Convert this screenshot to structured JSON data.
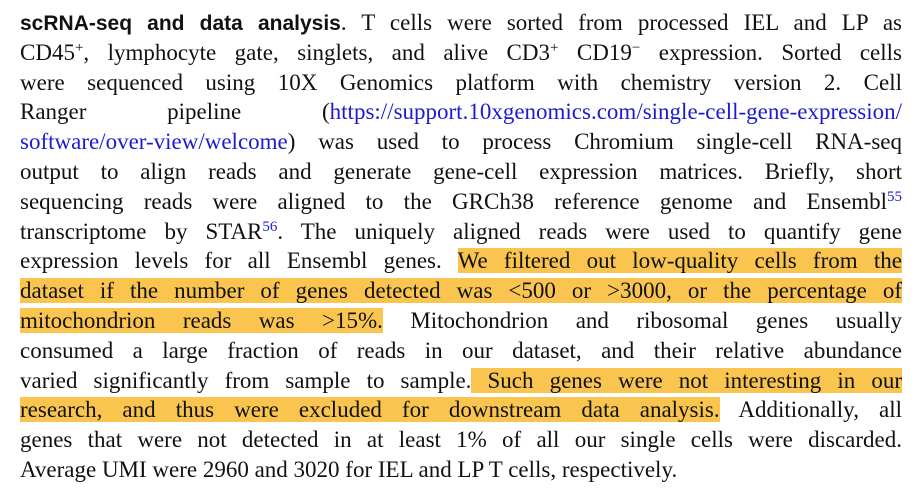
{
  "paragraph": {
    "heading": "scRNA-seq and data analysis",
    "lines": [
      [
        ". T cells were sorted from processed IEL and LP as"
      ],
      [
        "CD45",
        "+",
        ", lymphocyte gate, singlets, and alive CD3",
        "+",
        " CD19",
        "−",
        " expression. Sorted cells"
      ],
      [
        "were sequenced using 10X Genomics platform with chemistry version 2. Cell"
      ],
      [
        "Ranger pipeline (",
        "https://support.10xgenomics.com/single-cell-gene-expression/"
      ],
      [
        "software/over-view/welcome",
        ") was used to process Chromium single-cell RNA-seq"
      ],
      [
        "output to align reads and generate gene-cell expression matrices. Briefly, short"
      ],
      [
        "sequencing reads were aligned to the GRCh38 reference genome and Ensembl",
        "55"
      ],
      [
        "transcriptome by STAR",
        "56",
        ". The uniquely aligned reads were used to quantify gene"
      ],
      [
        "expression levels for all Ensembl genes. ",
        "We filtered out low-quality cells from the"
      ],
      [
        "dataset if the number of genes detected was <500 or >3000, or the percentage of"
      ],
      [
        "mitochondrion reads was >15%.",
        " Mitochondrion and ribosomal genes usually"
      ],
      [
        "consumed a large fraction of reads in our dataset, and their relative abundance"
      ],
      [
        "varied significantly from sample to sample.",
        " Such genes were not interesting in our"
      ],
      [
        "research, and thus were excluded for downstream data analysis.",
        " Additionally, all"
      ],
      [
        "genes that were not detected in at least 1% of all our single cells were discarded."
      ],
      [
        "Average UMI were 2960 and 3020 for IEL and LP T cells, respectively."
      ]
    ]
  }
}
